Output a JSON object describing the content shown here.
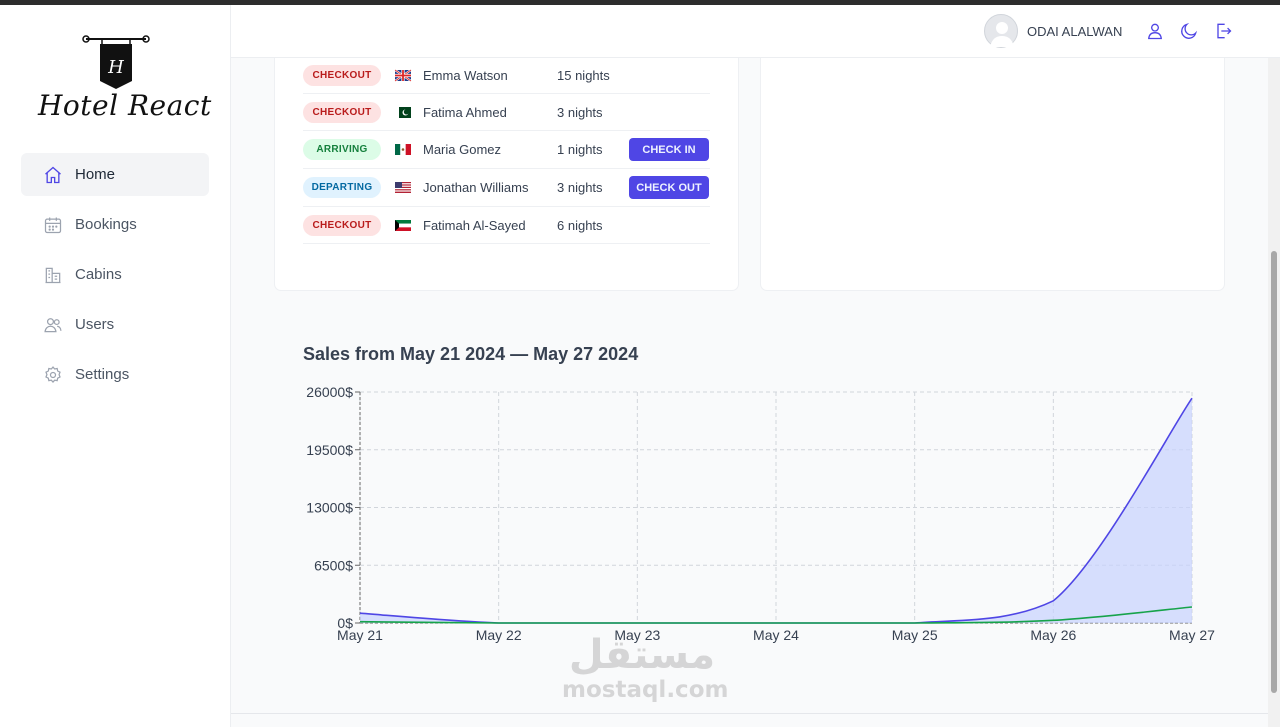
{
  "app": {
    "logo_text": "Hotel React",
    "logo_letter": "H"
  },
  "sidebar": {
    "items": [
      {
        "label": "Home",
        "icon": "home-icon",
        "active": true
      },
      {
        "label": "Bookings",
        "icon": "calendar-icon",
        "active": false
      },
      {
        "label": "Cabins",
        "icon": "building-icon",
        "active": false
      },
      {
        "label": "Users",
        "icon": "users-icon",
        "active": false
      },
      {
        "label": "Settings",
        "icon": "gear-icon",
        "active": false
      }
    ]
  },
  "header": {
    "user_name": "ODAI ALALWAN",
    "icons": [
      "user-icon",
      "moon-icon",
      "logout-icon"
    ]
  },
  "activity": [
    {
      "status": "CHECKOUT",
      "status_type": "checkout",
      "flag": "gb-flag-icon",
      "guest": "Emma Watson",
      "nights": "15 nights",
      "action": ""
    },
    {
      "status": "CHECKOUT",
      "status_type": "checkout",
      "flag": "pk-flag-icon",
      "guest": "Fatima Ahmed",
      "nights": "3 nights",
      "action": ""
    },
    {
      "status": "ARRIVING",
      "status_type": "arriving",
      "flag": "mx-flag-icon",
      "guest": "Maria Gomez",
      "nights": "1 nights",
      "action": "CHECK IN"
    },
    {
      "status": "DEPARTING",
      "status_type": "departing",
      "flag": "us-flag-icon",
      "guest": "Jonathan Williams",
      "nights": "3 nights",
      "action": "CHECK OUT"
    },
    {
      "status": "CHECKOUT",
      "status_type": "checkout",
      "flag": "kw-flag-icon",
      "guest": "Fatimah Al-Sayed",
      "nights": "6 nights",
      "action": ""
    }
  ],
  "colors": {
    "accent": "#4f46e5",
    "total_sales_line": "#4f46e5",
    "total_sales_fill": "#c7d2fe",
    "extras_sales_line": "#16a34a",
    "checkout_bg": "#fde2e2",
    "arriving_bg": "#dcfce7",
    "departing_bg": "#e0f2fe"
  },
  "chart_data": {
    "type": "area",
    "title": "Sales from May 21 2024 — May 27 2024",
    "categories": [
      "May 21",
      "May 22",
      "May 23",
      "May 24",
      "May 25",
      "May 26",
      "May 27"
    ],
    "y_ticks": [
      "0$",
      "6500$",
      "13000$",
      "19500$",
      "26000$"
    ],
    "ylim": [
      0,
      26000
    ],
    "grid": true,
    "series": [
      {
        "values": [
          1100,
          0,
          0,
          0,
          0,
          2500,
          25300
        ]
      },
      {
        "values": [
          150,
          0,
          0,
          0,
          0,
          300,
          1800
        ]
      }
    ]
  },
  "watermark": {
    "arabic": "مستقل",
    "latin": "mostaql.com"
  }
}
